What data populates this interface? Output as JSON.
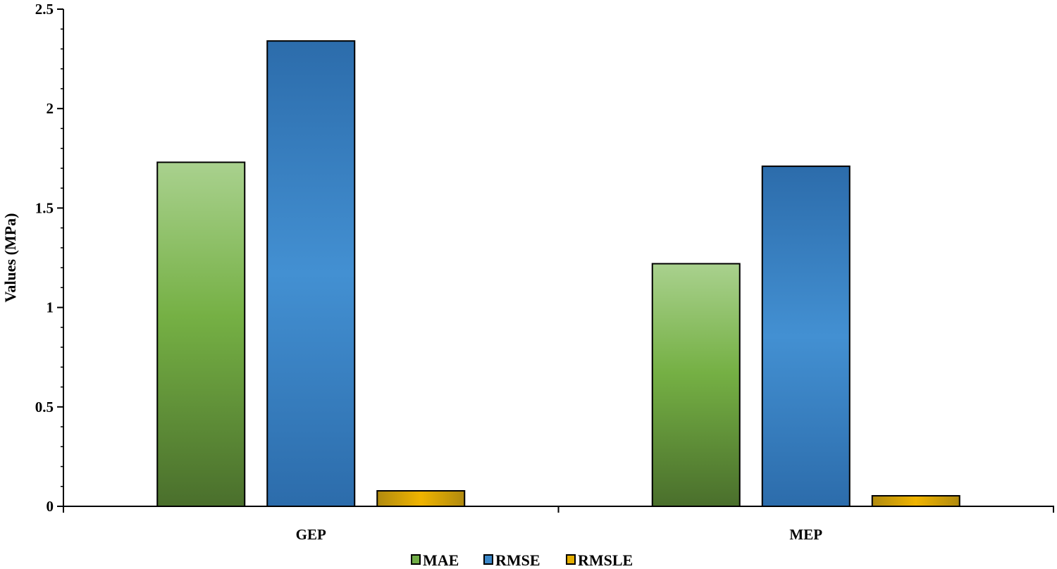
{
  "chart_data": {
    "type": "bar",
    "title": "",
    "xlabel": "",
    "ylabel": "Values (MPa)",
    "ylim": [
      0,
      2.5
    ],
    "yticks": [
      "0",
      "0.5",
      "1",
      "1.5",
      "2",
      "2.5"
    ],
    "categories": [
      "GEP",
      "MEP"
    ],
    "series": [
      {
        "name": "MAE",
        "values": [
          1.73,
          1.22
        ],
        "color": "#70AD47"
      },
      {
        "name": "RMSE",
        "values": [
          2.34,
          1.71
        ],
        "color": "#3B87C8"
      },
      {
        "name": "RMSLE",
        "values": [
          0.078,
          0.053
        ],
        "color": "#E4AE00"
      }
    ],
    "legend_position": "bottom",
    "grid": false
  }
}
